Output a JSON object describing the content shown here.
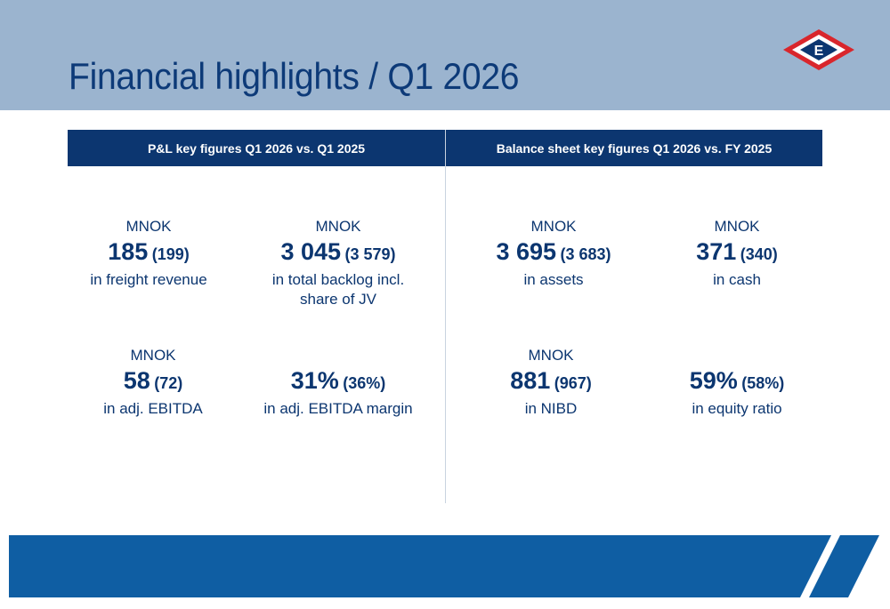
{
  "header": {
    "title": "Financial highlights / Q1 2026",
    "logo_letter": "E"
  },
  "columns": {
    "left_header": "P&L key figures Q1 2026 vs. Q1 2025",
    "right_header": "Balance sheet key figures Q1 2026 vs. FY 2025"
  },
  "figures": [
    {
      "unit": "MNOK",
      "value": "185",
      "previous": "(199)",
      "desc": "in freight revenue"
    },
    {
      "unit": "MNOK",
      "value": "3 045",
      "previous": "(3 579)",
      "desc": "in total backlog incl. share of JV"
    },
    {
      "unit": "MNOK",
      "value": "3 695",
      "previous": "(3 683)",
      "desc": "in assets"
    },
    {
      "unit": "MNOK",
      "value": "371",
      "previous": "(340)",
      "desc": "in cash"
    },
    {
      "unit": "MNOK",
      "value": "58",
      "previous": "(72)",
      "desc": "in adj. EBITDA"
    },
    {
      "unit": "",
      "value": "31%",
      "previous": "(36%)",
      "desc": "in adj. EBITDA margin"
    },
    {
      "unit": "MNOK",
      "value": "881",
      "previous": "(967)",
      "desc": "in NIBD"
    },
    {
      "unit": "",
      "value": "59%",
      "previous": "(58%)",
      "desc": "in equity ratio"
    }
  ],
  "colors": {
    "navy": "#0c3670",
    "header_bg": "#9bb4cf",
    "footer_blue": "#0f5ea3",
    "logo_red": "#d9262c"
  }
}
